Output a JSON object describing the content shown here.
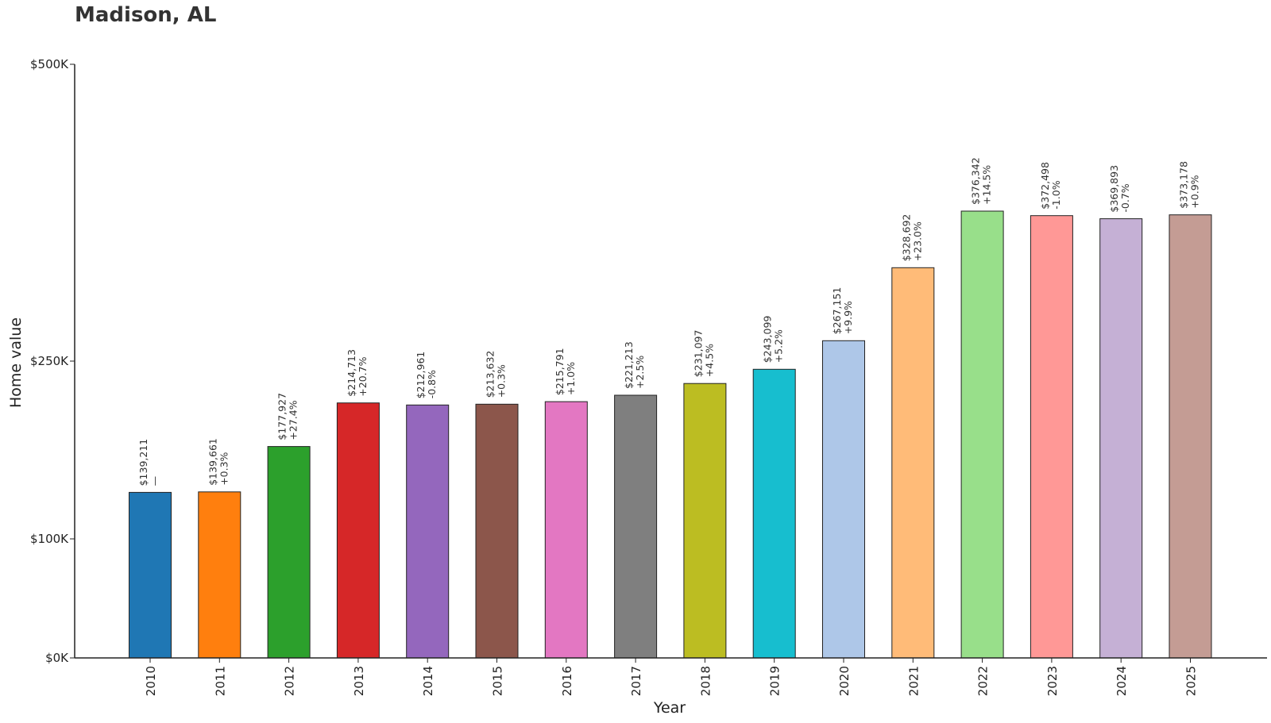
{
  "chart_data": {
    "type": "bar",
    "title": "Madison, AL",
    "xlabel": "Year",
    "ylabel": "Home value",
    "ylim": [
      0,
      500000
    ],
    "grid": false,
    "y_axis_scale": "piecewise-linear",
    "y_ticks": [
      {
        "value": 0,
        "label": "$0K"
      },
      {
        "value": 100000,
        "label": "$100K"
      },
      {
        "value": 250000,
        "label": "$250K"
      },
      {
        "value": 500000,
        "label": "$500K"
      }
    ],
    "categories": [
      "2010",
      "2011",
      "2012",
      "2013",
      "2014",
      "2015",
      "2016",
      "2017",
      "2018",
      "2019",
      "2020",
      "2021",
      "2022",
      "2023",
      "2024",
      "2025"
    ],
    "values": [
      139211,
      139661,
      177927,
      214713,
      212961,
      213632,
      215791,
      221213,
      231097,
      243099,
      267151,
      328692,
      376342,
      372498,
      369893,
      373178
    ],
    "value_labels": [
      "$139,211",
      "$139,661",
      "$177,927",
      "$214,713",
      "$212,961",
      "$213,632",
      "$215,791",
      "$221,213",
      "$231,097",
      "$243,099",
      "$267,151",
      "$328,692",
      "$376,342",
      "$372,498",
      "$369,893",
      "$373,178"
    ],
    "change_labels": [
      "—",
      "+0.3%",
      "+27.4%",
      "+20.7%",
      "-0.8%",
      "+0.3%",
      "+1.0%",
      "+2.5%",
      "+4.5%",
      "+5.2%",
      "+9.9%",
      "+23.0%",
      "+14.5%",
      "-1.0%",
      "-0.7%",
      "+0.9%"
    ],
    "colors": [
      "#1f77b4",
      "#ff7f0e",
      "#2ca02c",
      "#d62728",
      "#9467bd",
      "#8c564b",
      "#e377c2",
      "#7f7f7f",
      "#bcbd22",
      "#17becf",
      "#aec7e8",
      "#ffbb78",
      "#98df8a",
      "#ff9896",
      "#c5b0d5",
      "#c49c94"
    ]
  }
}
